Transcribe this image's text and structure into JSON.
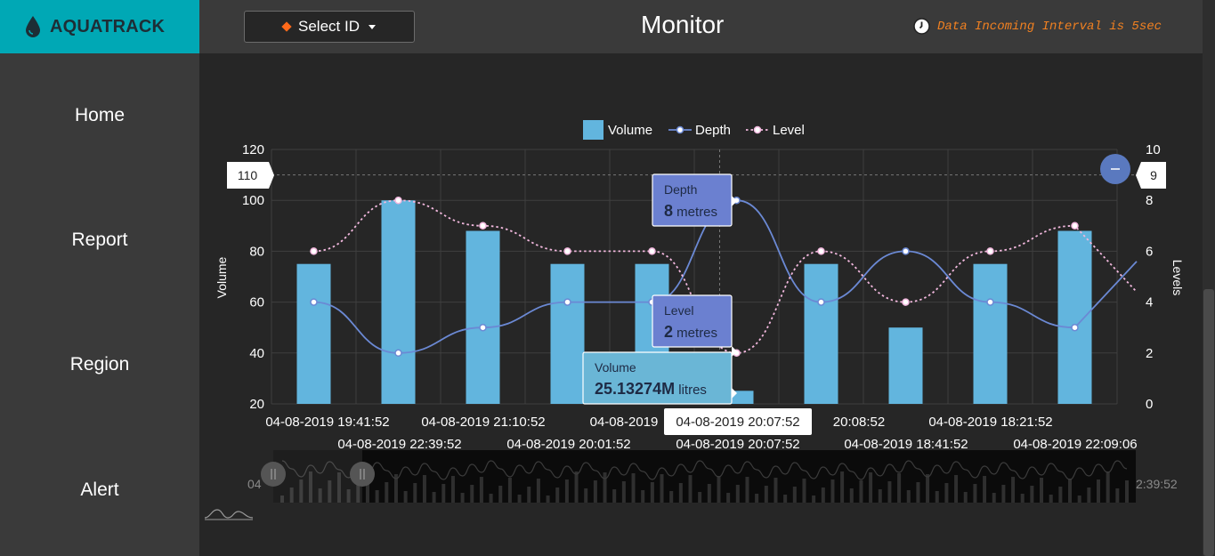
{
  "app": {
    "name": "AQUATRACK"
  },
  "header": {
    "select_label": "Select ID",
    "title": "Monitor",
    "interval_text": "Data Incoming Interval is 5sec"
  },
  "sidebar": {
    "items": [
      {
        "label": "Home"
      },
      {
        "label": "Report"
      },
      {
        "label": "Region"
      },
      {
        "label": "Alert"
      }
    ]
  },
  "colors": {
    "brand": "#00a8b5",
    "volume": "#62b5de",
    "depth": "#6b89d4",
    "level": "#f2b8de",
    "accent": "#f08021"
  },
  "chart_data": {
    "type": "bar",
    "legend": [
      "Volume",
      "Depth",
      "Level"
    ],
    "legend_position": "top-center",
    "ylabel_left": "Volume",
    "ylabel_right": "Levels",
    "ylim_left": [
      20,
      120
    ],
    "ylim_right": [
      0,
      10
    ],
    "yticks_left": [
      120,
      100,
      80,
      60,
      40,
      20
    ],
    "yticks_right": [
      10,
      8,
      6,
      4,
      2,
      0
    ],
    "grid": true,
    "categories": [
      "04-08-2019 19:41:52",
      "04-08-2019 22:39:52",
      "04-08-2019 21:10:52",
      "04-08-2019 20:01:52",
      "04-08-2019 20:07:52",
      "04-08-2019 20:07:52",
      "04-08-2019 20:08:52",
      "04-08-2019 18:41:52",
      "04-08-2019 18:21:52",
      "04-08-2019 22:09:06"
    ],
    "x_labels_row1": [
      "04-08-2019 19:41:52",
      "04-08-2019 21:10:52",
      "04-08-2019",
      "20:08:52",
      "04-08-2019 18:21:52"
    ],
    "x_labels_row2": [
      "04-08-2019 22:39:52",
      "04-08-2019 20:01:52",
      "04-08-2019 20:07:52",
      "04-08-2019 18:41:52",
      "04-08-2019 22:09:06"
    ],
    "series": [
      {
        "name": "Volume",
        "type": "bar",
        "axis": "left",
        "values": [
          75,
          100,
          88,
          75,
          75,
          25.13274,
          75,
          50,
          75,
          88
        ]
      },
      {
        "name": "Depth",
        "type": "line",
        "axis": "right",
        "values": [
          4,
          2,
          3,
          4,
          4,
          8,
          4,
          6,
          4,
          3
        ]
      },
      {
        "name": "Level",
        "type": "line",
        "axis": "right",
        "values": [
          6,
          8,
          7,
          6,
          6,
          2,
          6,
          4,
          6,
          7
        ]
      }
    ],
    "crosshair": {
      "left_value": "110",
      "right_value": "9",
      "x_label": "04-08-2019 20:07:52"
    },
    "tooltips": [
      {
        "title": "Depth",
        "value": "8",
        "unit": "metres"
      },
      {
        "title": "Level",
        "value": "2",
        "unit": "metres"
      },
      {
        "title": "Volume",
        "value": "25.13274M",
        "unit": "litres"
      }
    ],
    "navigator": {
      "left_label": "04",
      "right_label": "2:39:52"
    }
  }
}
